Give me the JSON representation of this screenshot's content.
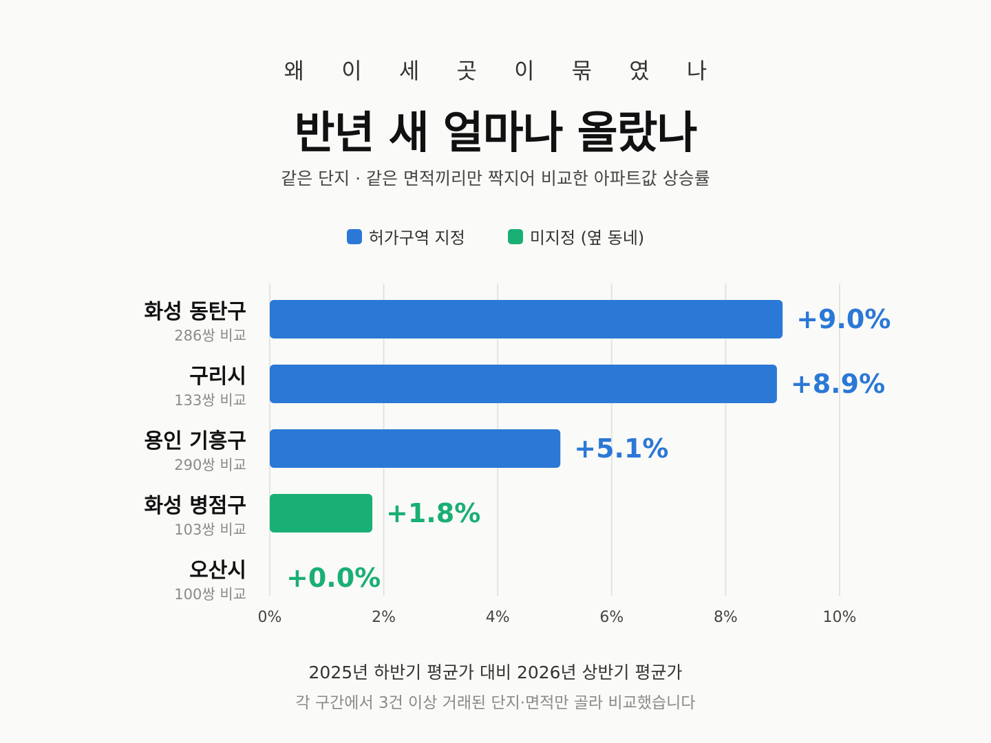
{
  "header": {
    "kicker": "왜 이 세 곳 이 묶 였 나",
    "title": "반년 새 얼마나 올랐나",
    "subtitle": "같은 단지 · 같은 면적끼리만 짝지어 비교한 아파트값 상승률"
  },
  "legend": {
    "items": [
      {
        "label": "허가구역 지정",
        "color": "#2b78d6"
      },
      {
        "label": "미지정 (옆 동네)",
        "color": "#1aaf74"
      }
    ]
  },
  "chart_data": {
    "type": "bar",
    "orientation": "horizontal",
    "title": "반년 새 얼마나 올랐나",
    "xlabel": "",
    "ylabel": "",
    "xlim": [
      0,
      10
    ],
    "x_ticks": [
      "0%",
      "2%",
      "4%",
      "6%",
      "8%",
      "10%"
    ],
    "x_tick_values": [
      0,
      2,
      4,
      6,
      8,
      10
    ],
    "grid": true,
    "legend_position": "top-center",
    "categories": [
      "화성 동탄구",
      "구리시",
      "용인 기흥구",
      "화성 병점구",
      "오산시"
    ],
    "sublabels": [
      "286쌍 비교",
      "133쌍 비교",
      "290쌍 비교",
      "103쌍 비교",
      "100쌍 비교"
    ],
    "values": [
      9.0,
      8.9,
      5.1,
      1.8,
      0.0
    ],
    "value_labels": [
      "+9.0%",
      "+8.9%",
      "+5.1%",
      "+1.8%",
      "+0.0%"
    ],
    "groups": [
      "허가구역 지정",
      "허가구역 지정",
      "허가구역 지정",
      "미지정 (옆 동네)",
      "미지정 (옆 동네)"
    ],
    "colors": {
      "허가구역 지정": "#2b78d6",
      "미지정 (옆 동네)": "#1aaf74"
    }
  },
  "footer": {
    "line1": "2025년 하반기 평균가 대비 2026년 상반기 평균가",
    "line2": "각 구간에서 3건 이상 거래된 단지·면적만 골라 비교했습니다"
  }
}
